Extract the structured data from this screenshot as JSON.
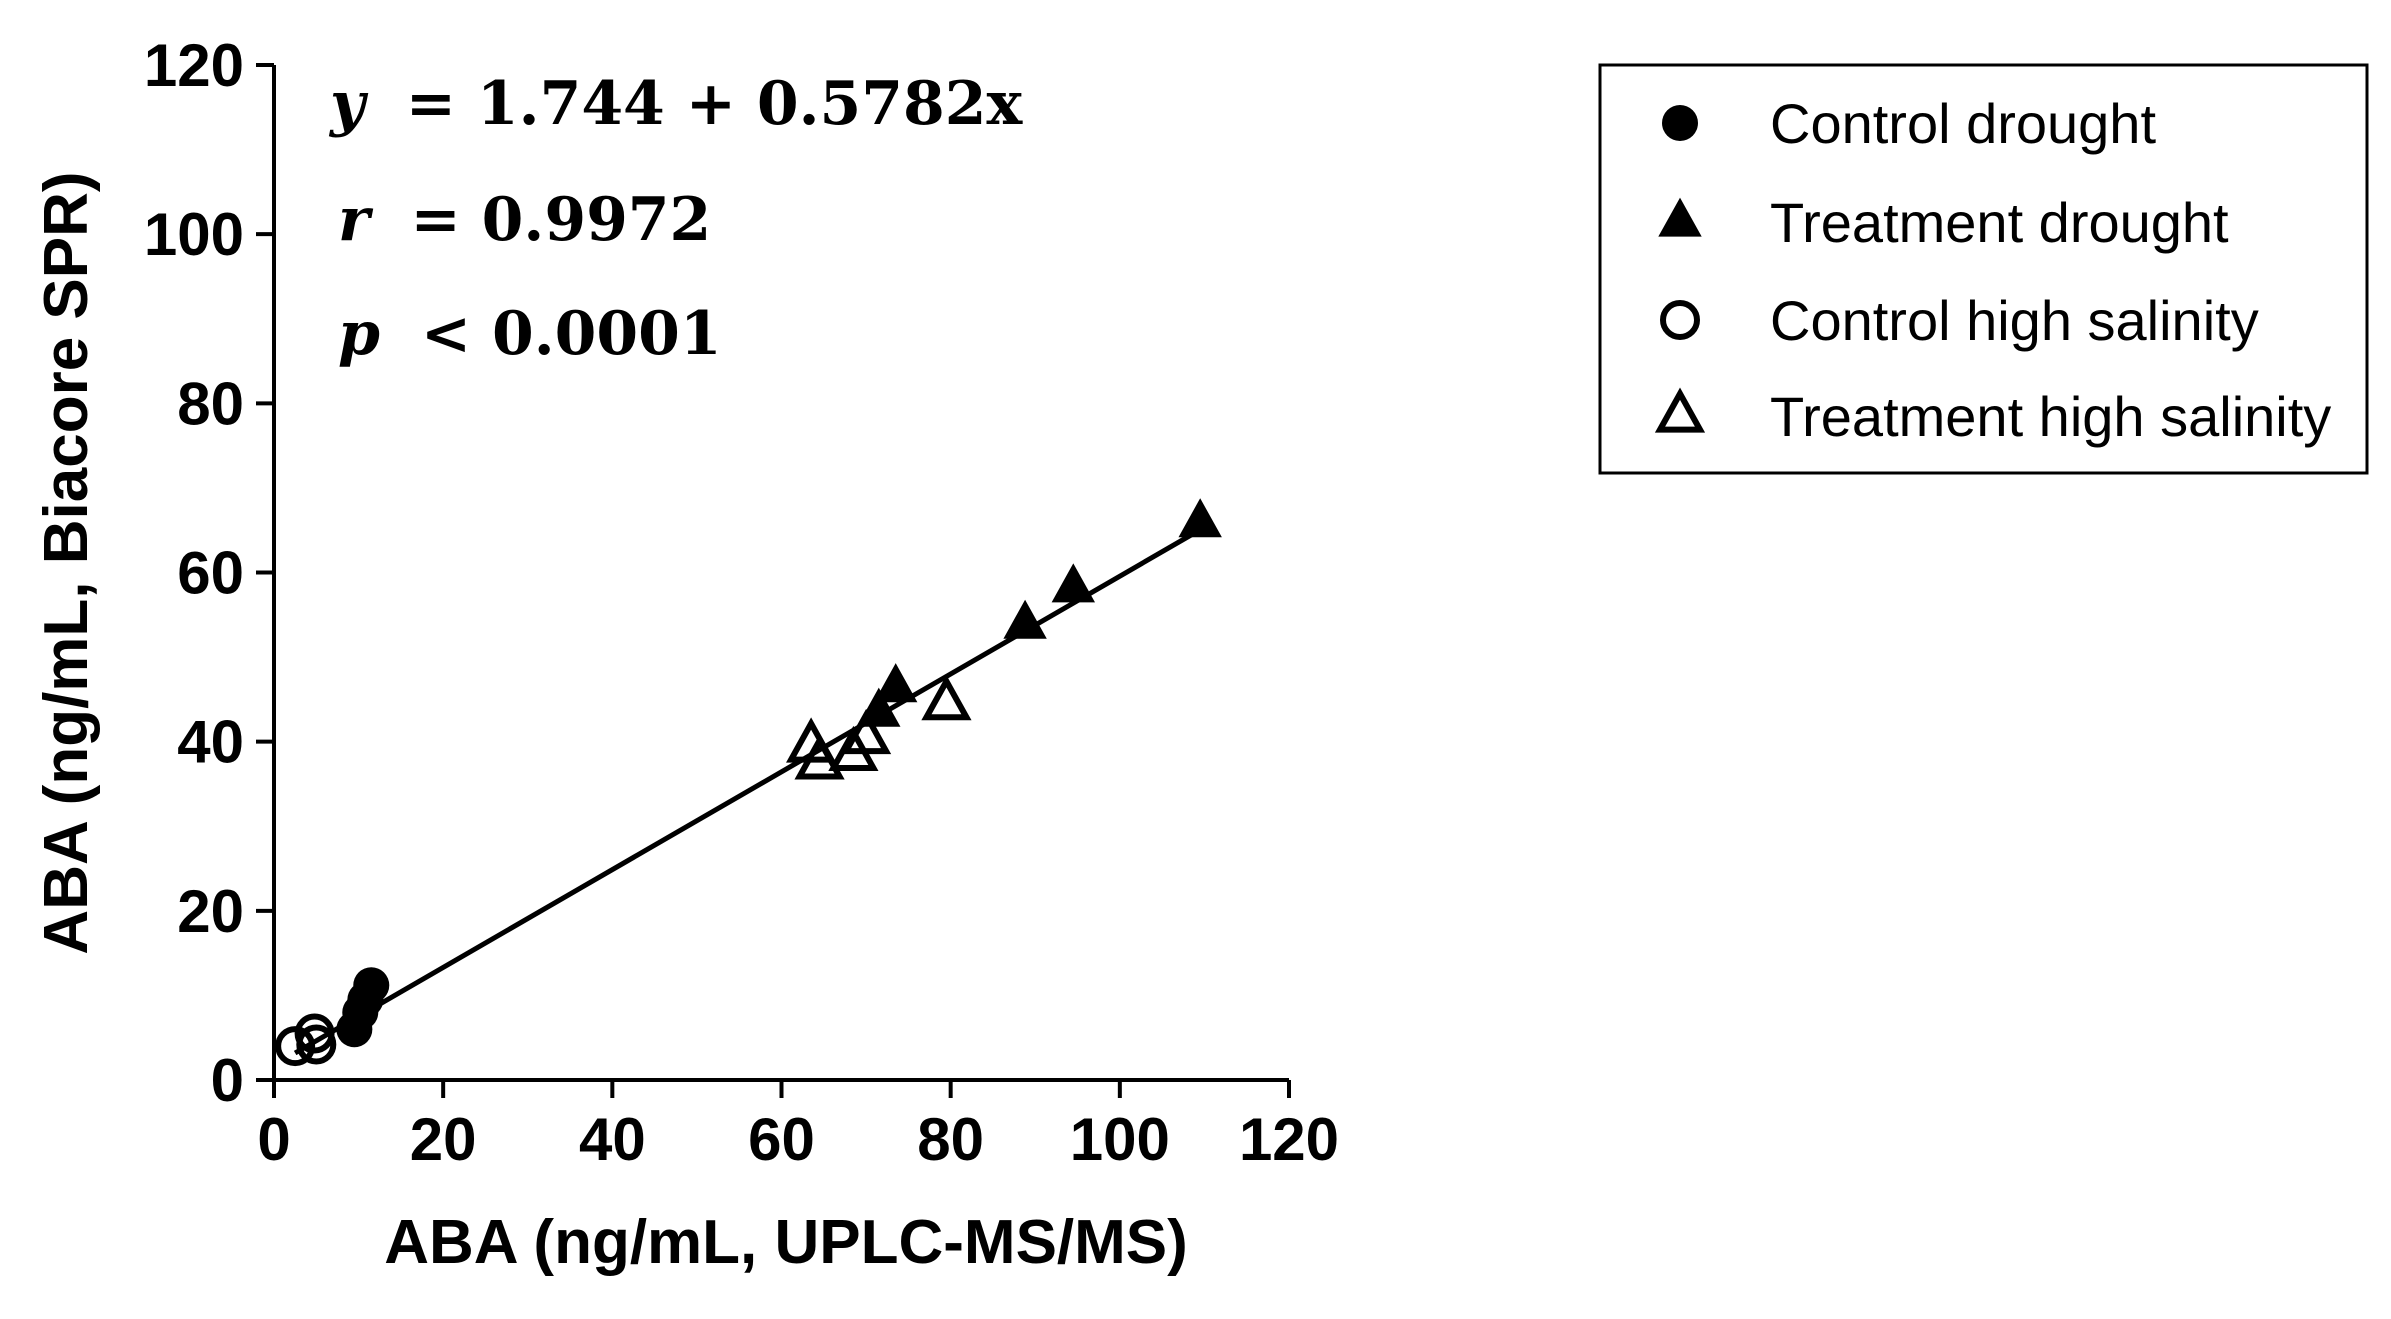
{
  "chart_data": {
    "type": "scatter",
    "xlabel": "ABA (ng/mL, UPLC-MS/MS)",
    "ylabel": "ABA (ng/mL, Biacore SPR)",
    "xlim": [
      0,
      120
    ],
    "ylim": [
      0,
      120
    ],
    "x_ticks": [
      "0",
      "20",
      "40",
      "60",
      "80",
      "100",
      "120"
    ],
    "y_ticks": [
      "0",
      "20",
      "40",
      "60",
      "80",
      "100",
      "120"
    ],
    "legend_position": "top-right",
    "annotations": {
      "equation": {
        "var": "y",
        "rhs": "= 1.744 + 0.5782x"
      },
      "r": {
        "var": "r",
        "rhs": "= 0.9972"
      },
      "p": {
        "var": "p",
        "rhs": "< 0.0001"
      }
    },
    "fit_line": {
      "intercept": 1.744,
      "slope": 0.5782,
      "x_range": [
        2.5,
        110
      ]
    },
    "series": [
      {
        "name": "Control drought",
        "marker": "circle-filled",
        "points": [
          {
            "x": 11.5,
            "y": 11.2
          },
          {
            "x": 10.8,
            "y": 9.5
          },
          {
            "x": 10.2,
            "y": 8.0
          },
          {
            "x": 9.5,
            "y": 6.0
          }
        ]
      },
      {
        "name": "Treatment drought",
        "marker": "triangle-filled",
        "points": [
          {
            "x": 109.5,
            "y": 65.9
          },
          {
            "x": 94.5,
            "y": 58.2
          },
          {
            "x": 88.8,
            "y": 53.9
          },
          {
            "x": 73.5,
            "y": 46.4
          },
          {
            "x": 71.5,
            "y": 43.5
          }
        ]
      },
      {
        "name": "Control high salinity",
        "marker": "circle-open",
        "points": [
          {
            "x": 2.5,
            "y": 4.0
          },
          {
            "x": 4.8,
            "y": 5.5
          },
          {
            "x": 5.0,
            "y": 4.2
          }
        ]
      },
      {
        "name": "Treatment high salinity",
        "marker": "triangle-open",
        "points": [
          {
            "x": 79.5,
            "y": 44.5
          },
          {
            "x": 70.0,
            "y": 40.5
          },
          {
            "x": 68.5,
            "y": 38.5
          },
          {
            "x": 63.5,
            "y": 39.5
          },
          {
            "x": 64.5,
            "y": 37.5
          }
        ]
      }
    ]
  }
}
